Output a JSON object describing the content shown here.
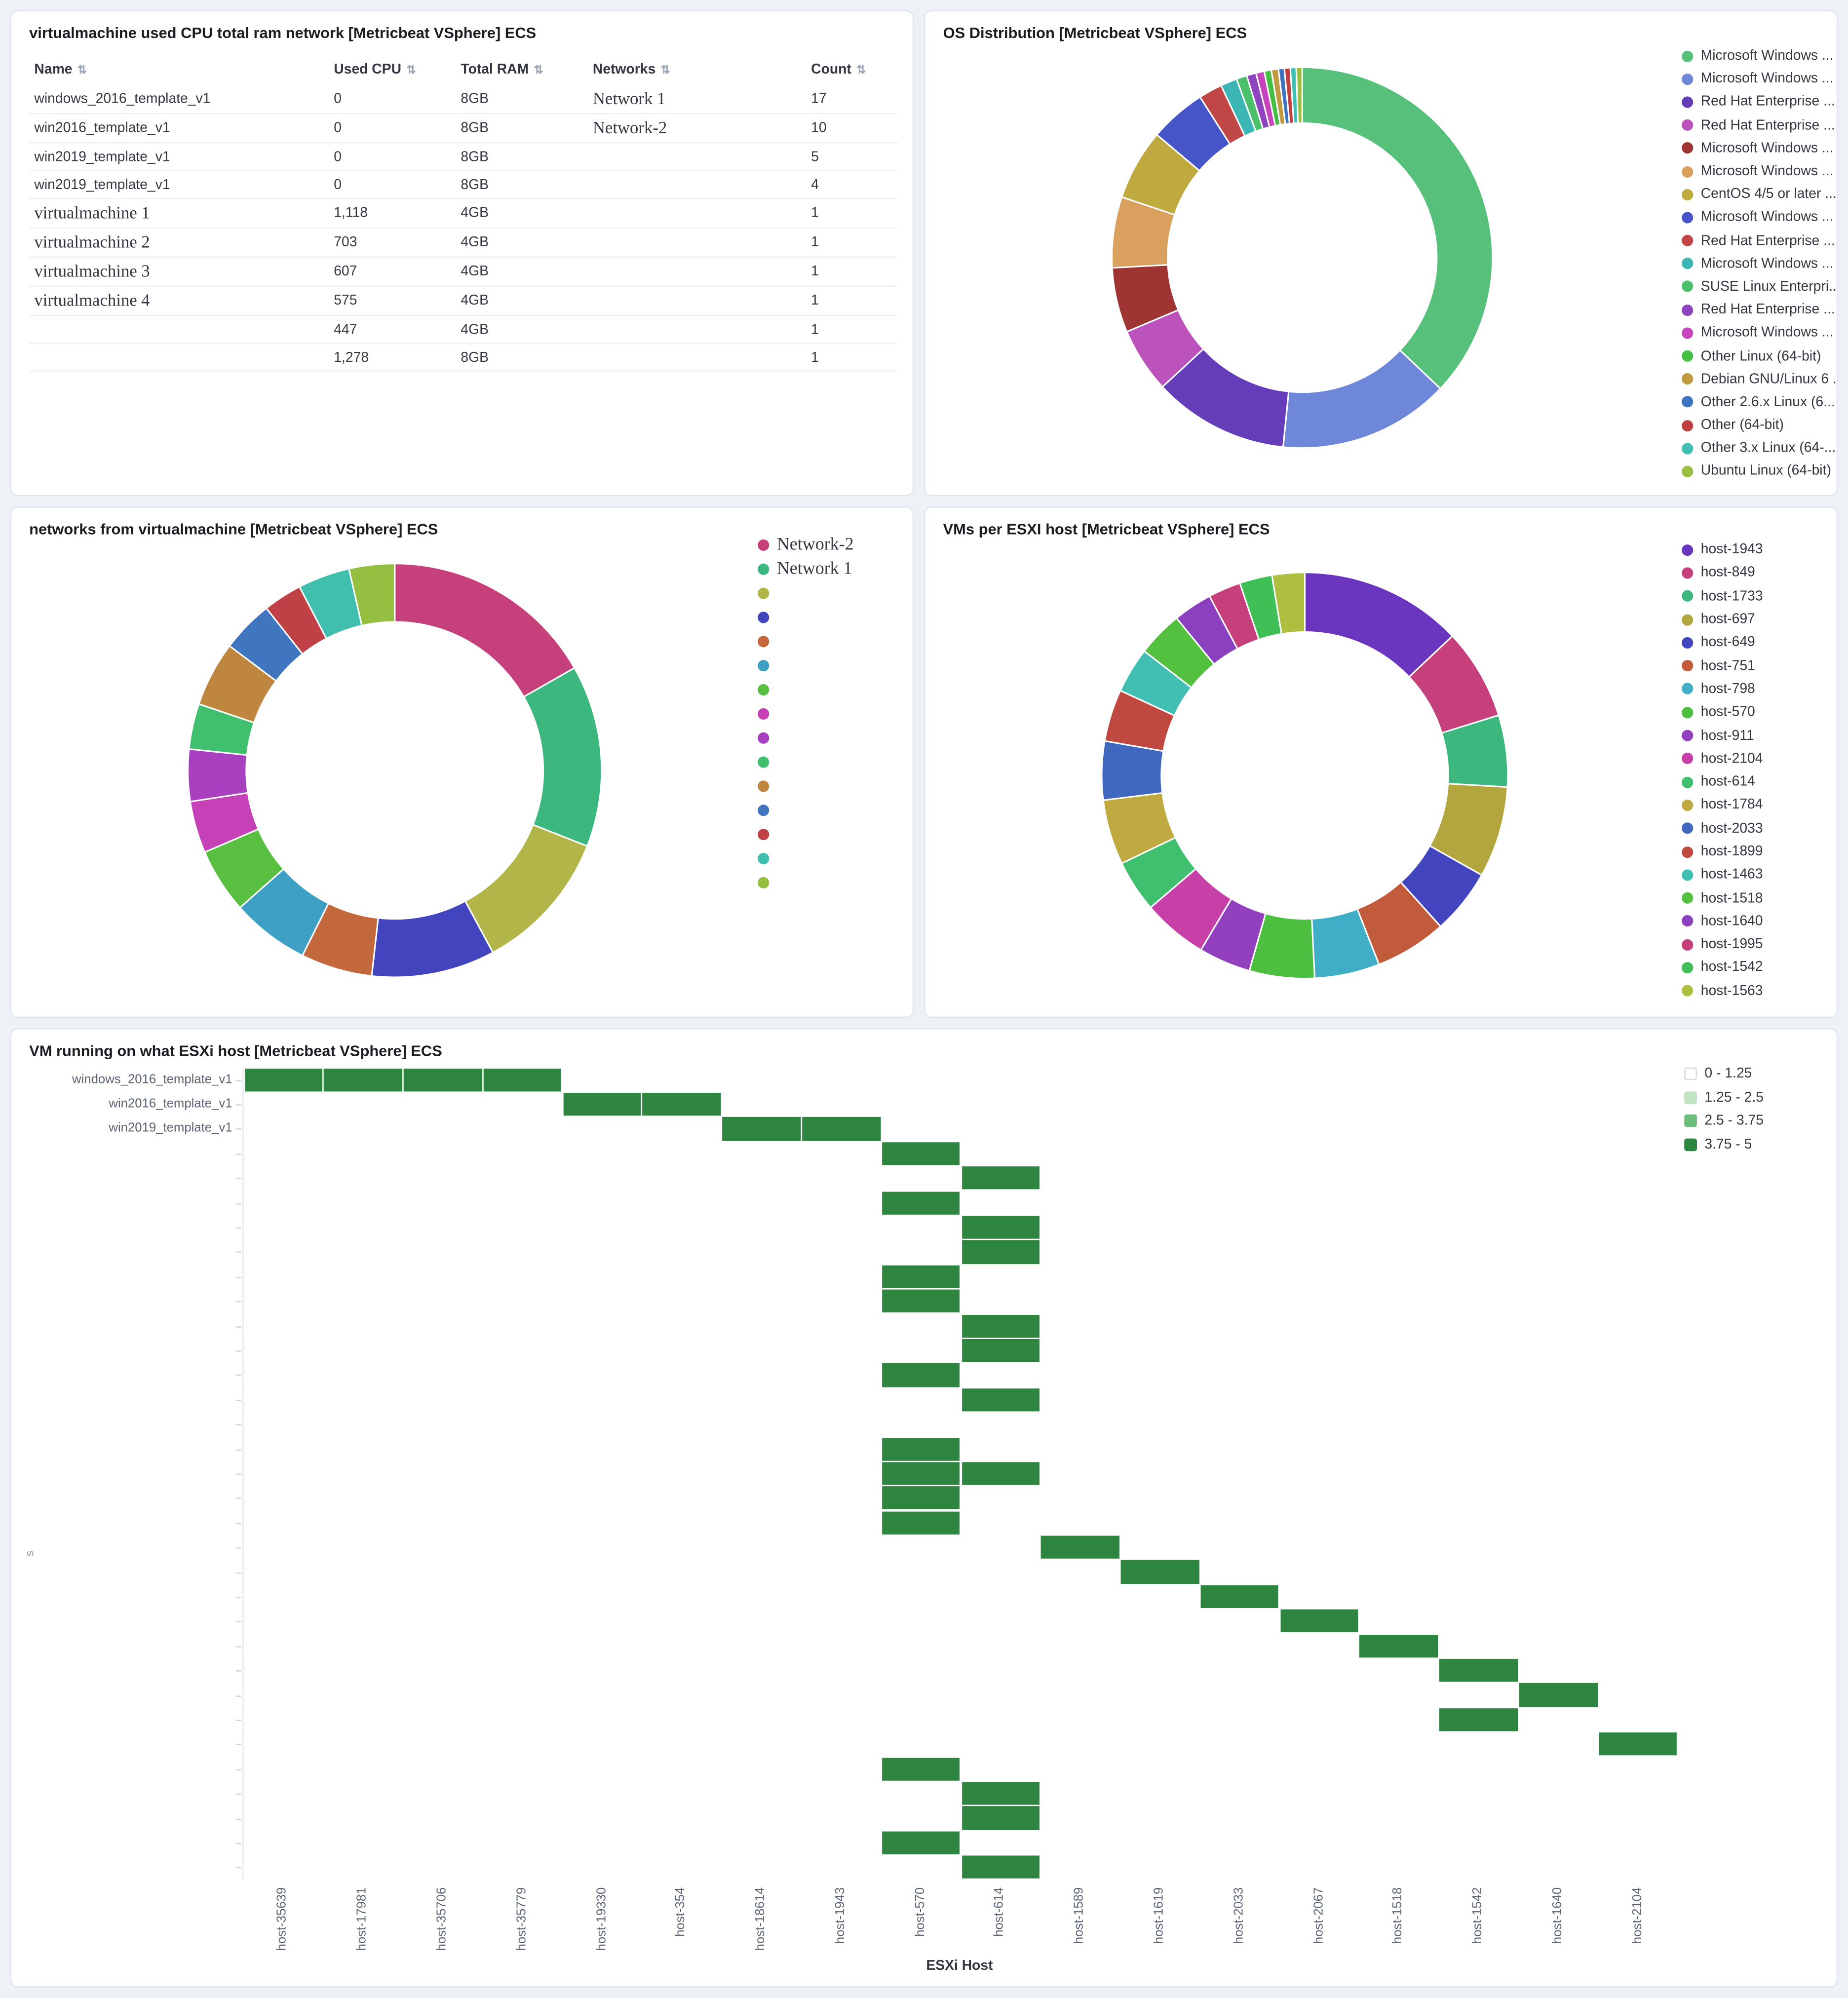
{
  "table_panel": {
    "title": "virtualmachine used CPU total ram network [Metricbeat VSphere] ECS",
    "sort_icon": "⇅",
    "columns": [
      "Name",
      "Used CPU",
      "Total RAM",
      "Networks",
      "Count"
    ],
    "rows": [
      {
        "name": "windows_2016_template_v1",
        "name_serif": false,
        "cpu": "0",
        "ram": "8GB",
        "network": "Network 1",
        "count": "17"
      },
      {
        "name": "win2016_template_v1",
        "name_serif": false,
        "cpu": "0",
        "ram": "8GB",
        "network": "Network-2",
        "count": "10"
      },
      {
        "name": "win2019_template_v1",
        "name_serif": false,
        "cpu": "0",
        "ram": "8GB",
        "network": "",
        "count": "5"
      },
      {
        "name": "win2019_template_v1",
        "name_serif": false,
        "cpu": "0",
        "ram": "8GB",
        "network": "",
        "count": "4"
      },
      {
        "name": "virtualmachine 1",
        "name_serif": true,
        "cpu": "1,118",
        "ram": "4GB",
        "network": "",
        "count": "1"
      },
      {
        "name": "virtualmachine 2",
        "name_serif": true,
        "cpu": "703",
        "ram": "4GB",
        "network": "",
        "count": "1"
      },
      {
        "name": "virtualmachine 3",
        "name_serif": true,
        "cpu": "607",
        "ram": "4GB",
        "network": "",
        "count": "1"
      },
      {
        "name": "virtualmachine 4",
        "name_serif": true,
        "cpu": "575",
        "ram": "4GB",
        "network": "",
        "count": "1"
      },
      {
        "name": "",
        "name_serif": false,
        "cpu": "447",
        "ram": "4GB",
        "network": "",
        "count": "1"
      },
      {
        "name": "",
        "name_serif": false,
        "cpu": "1,278",
        "ram": "8GB",
        "network": "",
        "count": "1"
      }
    ]
  },
  "chart_data": [
    {
      "id": "os",
      "type": "pie",
      "donut": true,
      "legend_position": "right",
      "title": "OS Distribution [Metricbeat VSphere] ECS",
      "slices": [
        {
          "label": "Microsoft Windows ...",
          "value": 37,
          "color": "#57C17B"
        },
        {
          "label": "Microsoft Windows ...",
          "value": 14.5,
          "color": "#6F87D8"
        },
        {
          "label": "Red Hat Enterprise ...",
          "value": 11.5,
          "color": "#663DB8"
        },
        {
          "label": "Red Hat Enterprise ...",
          "value": 5.5,
          "color": "#BC52BC"
        },
        {
          "label": "Microsoft Windows ...",
          "value": 5.5,
          "color": "#9E3533"
        },
        {
          "label": "Microsoft Windows ...",
          "value": 6,
          "color": "#DAA05D"
        },
        {
          "label": "CentOS 4/5 or later ...",
          "value": 6,
          "color": "#BFAA40"
        },
        {
          "label": "Microsoft Windows ...",
          "value": 4.8,
          "color": "#4656C9"
        },
        {
          "label": "Red Hat Enterprise ...",
          "value": 2,
          "color": "#C14747"
        },
        {
          "label": "Microsoft Windows ...",
          "value": 1.4,
          "color": "#3CB5B5"
        },
        {
          "label": "SUSE Linux Enterpri...",
          "value": 0.9,
          "color": "#4CBF6B"
        },
        {
          "label": "Red Hat Enterprise ...",
          "value": 0.8,
          "color": "#8F44BF"
        },
        {
          "label": "Microsoft Windows ...",
          "value": 0.7,
          "color": "#C644BC"
        },
        {
          "label": "Other Linux (64-bit)",
          "value": 0.6,
          "color": "#44BF44"
        },
        {
          "label": "Debian GNU/Linux 6 ...",
          "value": 0.6,
          "color": "#BF9A40"
        },
        {
          "label": "Other 2.6.x Linux (6...",
          "value": 0.5,
          "color": "#4073BF"
        },
        {
          "label": "Other (64-bit)",
          "value": 0.5,
          "color": "#BF4040"
        },
        {
          "label": "Other 3.x Linux (64-...",
          "value": 0.5,
          "color": "#40BFB2"
        },
        {
          "label": "Ubuntu Linux (64-bit)",
          "value": 0.5,
          "color": "#9ABF40"
        }
      ]
    },
    {
      "id": "networks",
      "type": "pie",
      "donut": true,
      "legend_position": "right",
      "title": "networks from virtualmachine [Metricbeat VSphere] ECS",
      "slices": [
        {
          "label": "Network-2",
          "value": 16.5,
          "color": "#C6417C",
          "serif": true
        },
        {
          "label": "Network 1",
          "value": 14,
          "color": "#3CB87E",
          "serif": true
        },
        {
          "label": "",
          "value": 11,
          "color": "#B2B649"
        },
        {
          "label": "",
          "value": 9.5,
          "color": "#4345BF"
        },
        {
          "label": "",
          "value": 5.5,
          "color": "#C2683C"
        },
        {
          "label": "",
          "value": 6,
          "color": "#3FA0C6"
        },
        {
          "label": "",
          "value": 5,
          "color": "#59BF40"
        },
        {
          "label": "",
          "value": 4,
          "color": "#C640B8"
        },
        {
          "label": "",
          "value": 4,
          "color": "#A840BF"
        },
        {
          "label": "",
          "value": 3.5,
          "color": "#40BF6E"
        },
        {
          "label": "",
          "value": 5,
          "color": "#BF8640"
        },
        {
          "label": "",
          "value": 4,
          "color": "#4076BF"
        },
        {
          "label": "",
          "value": 3,
          "color": "#BF4045"
        },
        {
          "label": "",
          "value": 4,
          "color": "#40BFAE"
        },
        {
          "label": "",
          "value": 3.5,
          "color": "#95BF40"
        }
      ]
    },
    {
      "id": "vms",
      "type": "pie",
      "donut": true,
      "legend_position": "right",
      "title": "VMs per ESXI host [Metricbeat VSphere] ECS",
      "slices": [
        {
          "label": "host-1943",
          "value": 12.5,
          "color": "#6A35BF"
        },
        {
          "label": "host-849",
          "value": 7,
          "color": "#C6417C"
        },
        {
          "label": "host-1733",
          "value": 5.5,
          "color": "#3CB87E"
        },
        {
          "label": "host-697",
          "value": 7,
          "color": "#B3A63F"
        },
        {
          "label": "host-649",
          "value": 5,
          "color": "#4345BF"
        },
        {
          "label": "host-751",
          "value": 5.5,
          "color": "#C25B3C"
        },
        {
          "label": "host-798",
          "value": 5,
          "color": "#40AEC6"
        },
        {
          "label": "host-570",
          "value": 5,
          "color": "#4CBF40"
        },
        {
          "label": "host-911",
          "value": 4,
          "color": "#9340BF"
        },
        {
          "label": "host-2104",
          "value": 5,
          "color": "#C640A8"
        },
        {
          "label": "host-614",
          "value": 4,
          "color": "#40BF6E"
        },
        {
          "label": "host-1784",
          "value": 5,
          "color": "#BFA940"
        },
        {
          "label": "host-2033",
          "value": 4.5,
          "color": "#4068BF"
        },
        {
          "label": "host-1899",
          "value": 4,
          "color": "#BF4840"
        },
        {
          "label": "host-1463",
          "value": 3.5,
          "color": "#40BFB2"
        },
        {
          "label": "host-1518",
          "value": 3.5,
          "color": "#53C13F"
        },
        {
          "label": "host-1640",
          "value": 3,
          "color": "#8A40BF"
        },
        {
          "label": "host-1995",
          "value": 2.5,
          "color": "#C6407C"
        },
        {
          "label": "host-1542",
          "value": 2.5,
          "color": "#40BF57"
        },
        {
          "label": "host-1563",
          "value": 2.5,
          "color": "#AEBF40"
        }
      ]
    },
    {
      "id": "heatmap",
      "type": "heatmap",
      "title": "VM running on what ESXi host [Metricbeat VSphere] ECS",
      "xlabel": "ESXi Host",
      "ylabel": "s",
      "legend_position": "right",
      "x_categories": [
        "host-35639",
        "host-17981",
        "host-35706",
        "host-35779",
        "host-19330",
        "host-354",
        "host-18614",
        "host-1943",
        "host-570",
        "host-614",
        "host-1589",
        "host-1619",
        "host-2033",
        "host-2067",
        "host-1518",
        "host-1542",
        "host-1640",
        "host-2104"
      ],
      "y_labeled_categories": [
        "windows_2016_template_v1",
        "win2016_template_v1",
        "win2019_template_v1"
      ],
      "n_rows": 33,
      "value_range": [
        0,
        5
      ],
      "cell_value_class": "3.75 - 5",
      "cell_color": "#2E8540",
      "cells": [
        [
          0,
          0
        ],
        [
          0,
          1
        ],
        [
          0,
          2
        ],
        [
          0,
          3
        ],
        [
          1,
          4
        ],
        [
          1,
          5
        ],
        [
          2,
          6
        ],
        [
          2,
          7
        ],
        [
          3,
          8
        ],
        [
          4,
          9
        ],
        [
          5,
          8
        ],
        [
          6,
          9
        ],
        [
          7,
          9
        ],
        [
          8,
          8
        ],
        [
          9,
          8
        ],
        [
          10,
          9
        ],
        [
          11,
          9
        ],
        [
          12,
          8
        ],
        [
          13,
          9
        ],
        [
          15,
          8
        ],
        [
          16,
          8
        ],
        [
          16,
          9
        ],
        [
          17,
          8
        ],
        [
          18,
          8
        ],
        [
          19,
          10
        ],
        [
          20,
          11
        ],
        [
          21,
          12
        ],
        [
          22,
          13
        ],
        [
          23,
          14
        ],
        [
          24,
          15
        ],
        [
          25,
          16
        ],
        [
          26,
          15
        ],
        [
          27,
          17
        ],
        [
          28,
          8
        ],
        [
          29,
          9
        ],
        [
          30,
          9
        ],
        [
          31,
          8
        ],
        [
          32,
          9
        ]
      ],
      "legend": [
        {
          "label": "0 - 1.25",
          "color": "#FFFFFF"
        },
        {
          "label": "1.25 - 2.5",
          "color": "#BFE3C3"
        },
        {
          "label": "2.5 - 3.75",
          "color": "#6DBD7C"
        },
        {
          "label": "3.75 - 5",
          "color": "#2E8540"
        }
      ]
    }
  ]
}
